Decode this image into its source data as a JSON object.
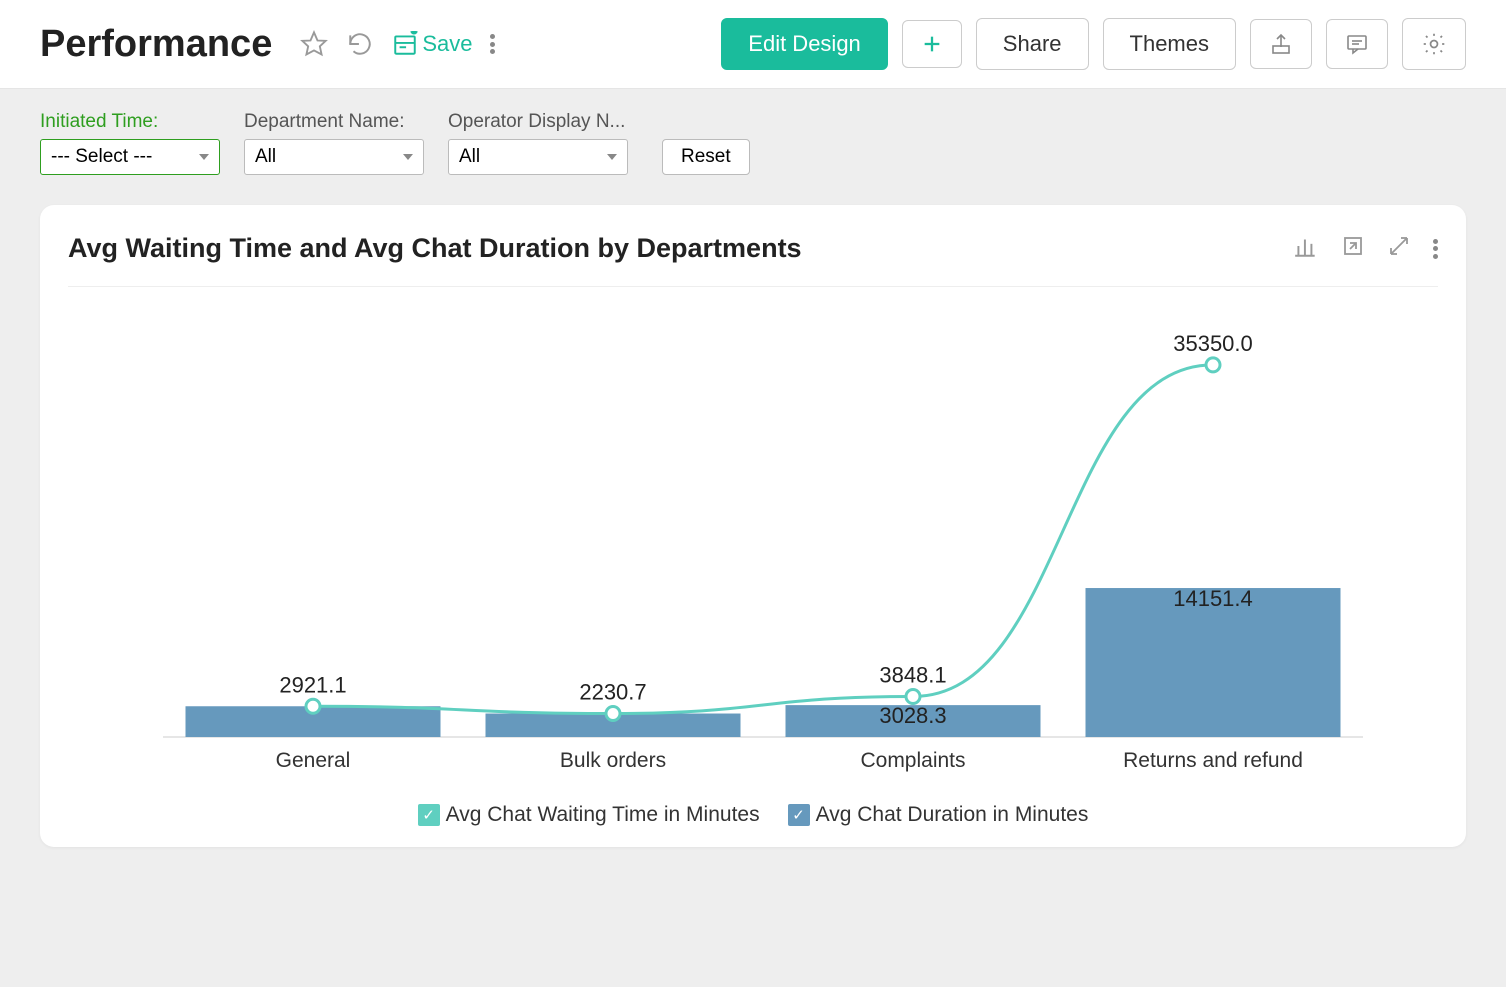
{
  "header": {
    "title": "Performance",
    "save_label": "Save",
    "edit_design_label": "Edit Design",
    "share_label": "Share",
    "themes_label": "Themes"
  },
  "filters": {
    "initiated_time": {
      "label": "Initiated Time:",
      "value": "--- Select ---"
    },
    "department_name": {
      "label": "Department Name:",
      "value": "All"
    },
    "operator_display": {
      "label": "Operator Display N...",
      "value": "All"
    },
    "reset_label": "Reset"
  },
  "chart": {
    "title": "Avg Waiting Time and Avg Chat Duration by Departments",
    "type": "bar+line",
    "categories": [
      "General",
      "Bulk orders",
      "Complaints",
      "Returns and refund"
    ],
    "bar_series": {
      "name": "Avg Chat Duration in Minutes",
      "values": [
        2921.1,
        2230.7,
        3028.3,
        14151.4
      ],
      "labels": [
        "",
        "",
        "3028.3",
        "14151.4"
      ],
      "color": "#6699bd"
    },
    "line_series": {
      "name": "Avg Chat Waiting Time in Minutes",
      "values": [
        2921.1,
        2230.7,
        3848.1,
        35350.0
      ],
      "labels": [
        "2921.1",
        "2230.7",
        "3848.1",
        "35350.0"
      ],
      "color": "#5fcfc0",
      "stroke_width": 3,
      "marker_radius": 7,
      "marker_fill": "#ffffff"
    },
    "y_max": 38000,
    "axis_color": "#cccccc",
    "label_font_size": 21,
    "value_font_size": 22,
    "background": "#ffffff"
  },
  "legend": [
    {
      "color": "#5fcfc0",
      "label": "Avg Chat Waiting Time in Minutes"
    },
    {
      "color": "#6699bd",
      "label": "Avg Chat Duration in Minutes"
    }
  ]
}
